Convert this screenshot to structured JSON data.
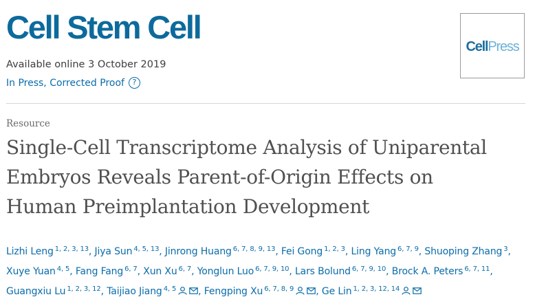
{
  "journal": {
    "title": "Cell Stem Cell"
  },
  "logo": {
    "cell": "Cell",
    "press": "Press"
  },
  "availability": {
    "text": "Available online 3 October 2019"
  },
  "status": {
    "label": "In Press, Corrected Proof",
    "help_icon": "?"
  },
  "article": {
    "type": "Resource",
    "title_lines": [
      "Single-Cell Transcriptome Analysis of Uniparental",
      "Embryos Reveals Parent-of-Origin Effects on",
      "Human Preimplantation Development"
    ]
  },
  "authors": [
    {
      "name": "Lizhi Leng",
      "aff": "1, 2, 3, 13",
      "sep": ", "
    },
    {
      "name": "Jiya Sun",
      "aff": "4, 5, 13",
      "sep": ", "
    },
    {
      "name": "Jinrong Huang",
      "aff": "6, 7, 8, 9, 13",
      "sep": ", "
    },
    {
      "name": "Fei Gong",
      "aff": "1, 2, 3",
      "sep": ", "
    },
    {
      "name": "Ling Yang",
      "aff": "6, 7, 9",
      "sep": ", "
    },
    {
      "name": "Shuoping Zhang",
      "aff": "3",
      "sep": ", "
    },
    {
      "name": "Xuye Yuan",
      "aff": "4, 5",
      "sep": ", "
    },
    {
      "name": "Fang Fang",
      "aff": "6, 7",
      "sep": ", "
    },
    {
      "name": "Xun Xu",
      "aff": "6, 7",
      "sep": ", "
    },
    {
      "name": "Yonglun Luo",
      "aff": "6, 7, 9, 10",
      "sep": ", "
    },
    {
      "name": "Lars Bolund",
      "aff": "6, 7, 9, 10",
      "sep": ", "
    },
    {
      "name": "Brock A. Peters",
      "aff": "6, 7, 11",
      "sep": ", "
    },
    {
      "name": "Guangxiu Lu",
      "aff": "1, 2, 3, 12",
      "sep": ", "
    },
    {
      "name": "Taijiao Jiang",
      "aff": "4, 5",
      "sep": ", ",
      "icons": true
    },
    {
      "name": "Fengping Xu",
      "aff": "6, 7, 8, 9",
      "sep": ", ",
      "icons": true
    },
    {
      "name": "Ge Lin",
      "aff": "1, 2, 3, 12, 14",
      "sep": "",
      "icons": true
    }
  ],
  "colors": {
    "brand": "#0d6a9c",
    "link": "#0a6caa"
  }
}
